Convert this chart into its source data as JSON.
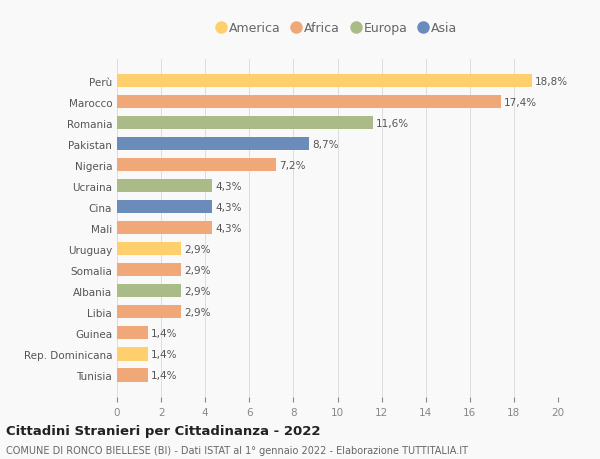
{
  "categories": [
    "Perù",
    "Marocco",
    "Romania",
    "Pakistan",
    "Nigeria",
    "Ucraina",
    "Cina",
    "Mali",
    "Uruguay",
    "Somalia",
    "Albania",
    "Libia",
    "Guinea",
    "Rep. Dominicana",
    "Tunisia"
  ],
  "values": [
    18.8,
    17.4,
    11.6,
    8.7,
    7.2,
    4.3,
    4.3,
    4.3,
    2.9,
    2.9,
    2.9,
    2.9,
    1.4,
    1.4,
    1.4
  ],
  "labels": [
    "18,8%",
    "17,4%",
    "11,6%",
    "8,7%",
    "7,2%",
    "4,3%",
    "4,3%",
    "4,3%",
    "2,9%",
    "2,9%",
    "2,9%",
    "2,9%",
    "1,4%",
    "1,4%",
    "1,4%"
  ],
  "colors": [
    "#FFCF6E",
    "#F0A878",
    "#AABB88",
    "#6B8BBB",
    "#F0A878",
    "#AABB88",
    "#6B8BBB",
    "#F0A878",
    "#FFCF6E",
    "#F0A878",
    "#AABB88",
    "#F0A878",
    "#F0A878",
    "#FFCF6E",
    "#F0A878"
  ],
  "legend_labels": [
    "America",
    "Africa",
    "Europa",
    "Asia"
  ],
  "legend_colors": [
    "#FFCF6E",
    "#F0A878",
    "#AABB88",
    "#6B8BBB"
  ],
  "xlim": [
    0,
    20
  ],
  "xticks": [
    0,
    2,
    4,
    6,
    8,
    10,
    12,
    14,
    16,
    18,
    20
  ],
  "title": "Cittadini Stranieri per Cittadinanza - 2022",
  "subtitle": "COMUNE DI RONCO BIELLESE (BI) - Dati ISTAT al 1° gennaio 2022 - Elaborazione TUTTITALIA.IT",
  "background_color": "#f9f9f9",
  "grid_color": "#dddddd",
  "label_fontsize": 7.5,
  "ytick_fontsize": 7.5,
  "xtick_fontsize": 7.5,
  "bar_height": 0.62
}
